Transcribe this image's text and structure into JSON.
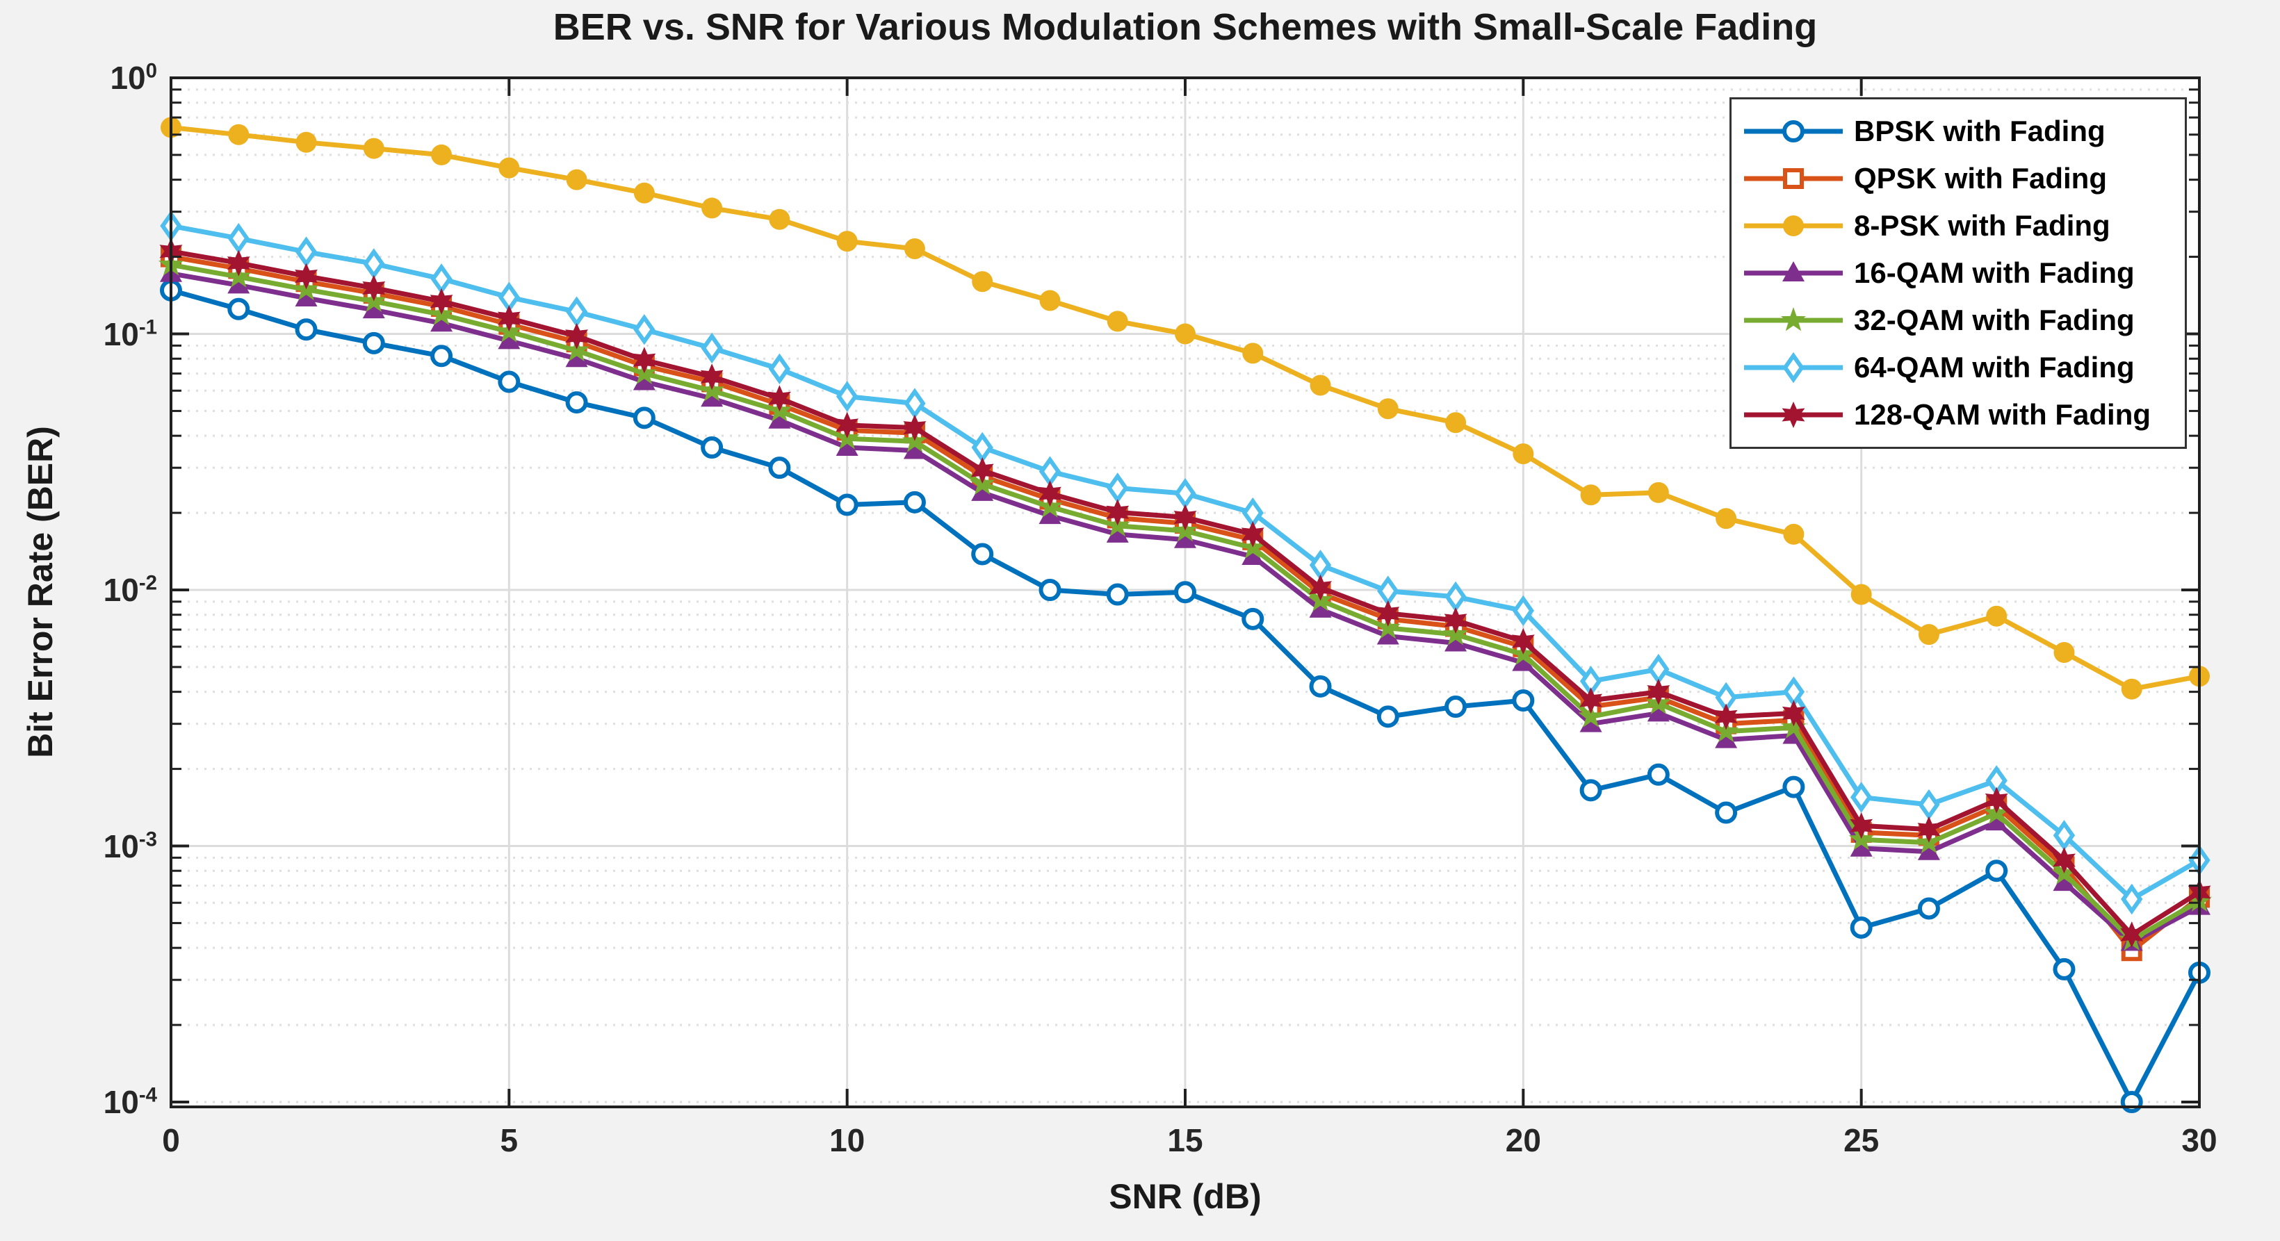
{
  "figure": {
    "background": "#F2F2F2",
    "plot_background": "#FFFFFF"
  },
  "colors": {
    "axis": "#202020",
    "tick": "#262626",
    "grid_major": "#DCDCDC",
    "grid_minor": "#DEDEDE",
    "plot_bg": "#FFFFFF",
    "legend_border": "#333333",
    "text": "#1a1a1a"
  },
  "chart_data": {
    "type": "line",
    "title": "BER vs. SNR for Various Modulation Schemes with Small-Scale Fading",
    "xlabel": "SNR (dB)",
    "ylabel": "Bit Error Rate (BER)",
    "x_scale": "linear",
    "y_scale": "log",
    "xlim": [
      0,
      30
    ],
    "ylim": [
      0.0001,
      1
    ],
    "x_ticks": [
      0,
      5,
      10,
      15,
      20,
      25,
      30
    ],
    "y_tick_exponents": [
      "0",
      "-1",
      "-2",
      "-3",
      "-4"
    ],
    "grid": "on",
    "minor_grid": "on",
    "legend_position": "top-right",
    "x": [
      0,
      1,
      2,
      3,
      4,
      5,
      6,
      7,
      8,
      9,
      10,
      11,
      12,
      13,
      14,
      15,
      16,
      17,
      18,
      19,
      20,
      21,
      22,
      23,
      24,
      25,
      26,
      27,
      28,
      29,
      30
    ],
    "series": [
      {
        "name": "BPSK with Fading",
        "color": "#0072BD",
        "marker": "circle",
        "values": [
          0.148,
          0.125,
          0.104,
          0.092,
          0.082,
          0.065,
          0.054,
          0.047,
          0.036,
          0.03,
          0.0215,
          0.022,
          0.0138,
          0.01,
          0.0096,
          0.0098,
          0.0077,
          0.0042,
          0.0032,
          0.0035,
          0.0037,
          0.00165,
          0.0019,
          0.00135,
          0.0017,
          0.00048,
          0.00057,
          0.0008,
          0.00033,
          0.0001,
          0.00032
        ]
      },
      {
        "name": "QPSK with Fading",
        "color": "#D95319",
        "marker": "square",
        "values": [
          0.2,
          0.18,
          0.16,
          0.144,
          0.128,
          0.109,
          0.093,
          0.075,
          0.065,
          0.053,
          0.042,
          0.041,
          0.0278,
          0.0226,
          0.0191,
          0.0182,
          0.0157,
          0.0097,
          0.0077,
          0.0072,
          0.006,
          0.0035,
          0.0038,
          0.003,
          0.0031,
          0.00113,
          0.0011,
          0.00143,
          0.00083,
          0.00039,
          0.00063
        ]
      },
      {
        "name": "8-PSK with Fading",
        "color": "#EDB120",
        "marker": "dot",
        "values": [
          0.64,
          0.6,
          0.56,
          0.53,
          0.5,
          0.445,
          0.4,
          0.355,
          0.31,
          0.28,
          0.23,
          0.215,
          0.16,
          0.135,
          0.112,
          0.1,
          0.084,
          0.063,
          0.051,
          0.045,
          0.034,
          0.0235,
          0.024,
          0.019,
          0.0165,
          0.0096,
          0.0067,
          0.0079,
          0.0057,
          0.0041,
          0.0046
        ]
      },
      {
        "name": "16-QAM with Fading",
        "color": "#7E2F8E",
        "marker": "triangle",
        "values": [
          0.172,
          0.155,
          0.138,
          0.124,
          0.11,
          0.094,
          0.08,
          0.065,
          0.056,
          0.046,
          0.036,
          0.035,
          0.024,
          0.0195,
          0.0165,
          0.0157,
          0.0135,
          0.0084,
          0.0066,
          0.0062,
          0.0052,
          0.003,
          0.0033,
          0.0026,
          0.0027,
          0.00098,
          0.00095,
          0.00124,
          0.00072,
          0.00042,
          0.00058
        ]
      },
      {
        "name": "32-QAM with Fading",
        "color": "#77AC30",
        "marker": "star5",
        "values": [
          0.186,
          0.167,
          0.149,
          0.134,
          0.119,
          0.102,
          0.086,
          0.07,
          0.06,
          0.05,
          0.039,
          0.038,
          0.0259,
          0.0211,
          0.0178,
          0.017,
          0.0146,
          0.0091,
          0.0071,
          0.0067,
          0.0056,
          0.0032,
          0.0036,
          0.0028,
          0.0029,
          0.00106,
          0.00103,
          0.00134,
          0.00078,
          0.00043,
          0.00061
        ]
      },
      {
        "name": "64-QAM with Fading",
        "color": "#4DBEEE",
        "marker": "diamond",
        "values": [
          0.264,
          0.236,
          0.209,
          0.188,
          0.164,
          0.139,
          0.122,
          0.104,
          0.088,
          0.073,
          0.057,
          0.0535,
          0.036,
          0.029,
          0.025,
          0.0238,
          0.02,
          0.0125,
          0.0099,
          0.0094,
          0.0083,
          0.0044,
          0.0049,
          0.0038,
          0.004,
          0.00155,
          0.00145,
          0.0018,
          0.0011,
          0.00062,
          0.00088
        ]
      },
      {
        "name": "128-QAM with Fading",
        "color": "#A2142F",
        "marker": "star6",
        "values": [
          0.21,
          0.189,
          0.168,
          0.151,
          0.134,
          0.115,
          0.098,
          0.079,
          0.068,
          0.056,
          0.044,
          0.043,
          0.0293,
          0.0238,
          0.0201,
          0.0192,
          0.0165,
          0.0102,
          0.0081,
          0.0076,
          0.0063,
          0.0037,
          0.004,
          0.0032,
          0.0033,
          0.0012,
          0.00116,
          0.00151,
          0.00088,
          0.00045,
          0.00066
        ]
      }
    ]
  }
}
